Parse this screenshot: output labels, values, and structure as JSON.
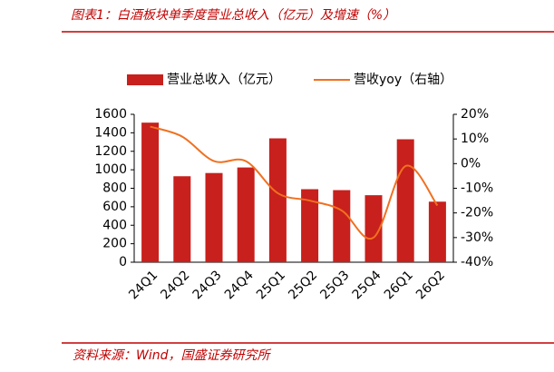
{
  "header": {
    "title": "图表1：白酒板块单季度营业总收入（亿元）及增速（%）"
  },
  "footer": {
    "source": "资料来源：Wind，国盛证券研究所"
  },
  "chart_data": {
    "type": "bar-line",
    "categories": [
      "24Q1",
      "24Q2",
      "24Q3",
      "24Q4",
      "25Q1",
      "25Q2",
      "25Q3",
      "25Q4",
      "26Q1",
      "26Q2"
    ],
    "series": [
      {
        "name": "营业总收入（亿元）",
        "type": "bar",
        "color": "#c8201c",
        "values": [
          1510,
          930,
          965,
          1025,
          1340,
          790,
          780,
          725,
          1330,
          655
        ]
      },
      {
        "name": "营收yoy（右轴）",
        "type": "line",
        "axis": "y2",
        "color": "#f07020",
        "values": [
          15,
          11,
          1,
          1,
          -12,
          -15,
          -19,
          -30,
          -1,
          -17
        ]
      }
    ],
    "ylim": [
      0,
      1600
    ],
    "yticks": [
      0,
      200,
      400,
      600,
      800,
      1000,
      1200,
      1400,
      1600
    ],
    "y2lim": [
      -40,
      20
    ],
    "y2ticks": [
      {
        "value": -40,
        "label": "-40%"
      },
      {
        "value": -30,
        "label": "-30%"
      },
      {
        "value": -20,
        "label": "-20%"
      },
      {
        "value": -10,
        "label": "-10%"
      },
      {
        "value": 0,
        "label": "0%"
      },
      {
        "value": 10,
        "label": "10%"
      },
      {
        "value": 20,
        "label": "20%"
      }
    ]
  }
}
